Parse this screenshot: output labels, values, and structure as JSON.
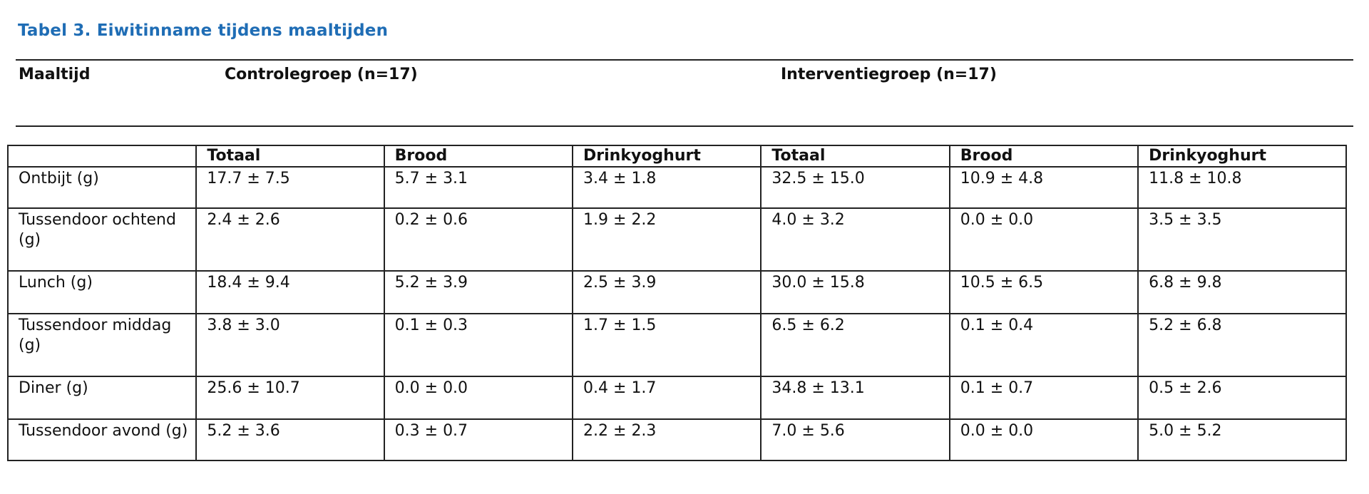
{
  "title": "Tabel 3.  Eiwitinname tijdens maaltijden",
  "header": {
    "meal_label": "Maaltijd",
    "control_group": "Controlegroep (n=17)",
    "intervention_group": "Interventiegroep (n=17)"
  },
  "columns": [
    "",
    "Totaal",
    "Brood",
    "Drinkyoghurt",
    "Totaal",
    "Brood",
    "Drinkyoghurt"
  ],
  "rows": [
    {
      "meal": "Ontbijt (g)",
      "values": [
        "17.7 ± 7.5",
        "5.7 ± 3.1",
        "3.4 ± 1.8",
        "32.5 ± 15.0",
        "10.9 ± 4.8",
        "11.8 ± 10.8"
      ]
    },
    {
      "meal": "Tussendoor ochtend (g)",
      "values": [
        "2.4 ± 2.6",
        "0.2 ± 0.6",
        "1.9 ± 2.2",
        "4.0 ± 3.2",
        "0.0 ± 0.0",
        "3.5 ± 3.5"
      ]
    },
    {
      "meal": "Lunch (g)",
      "values": [
        "18.4 ± 9.4",
        "5.2 ± 3.9",
        "2.5 ± 3.9",
        "30.0 ± 15.8",
        "10.5 ± 6.5",
        "6.8 ± 9.8"
      ]
    },
    {
      "meal": "Tussendoor middag (g)",
      "values": [
        "3.8 ± 3.0",
        "0.1 ± 0.3",
        "1.7 ± 1.5",
        "6.5 ± 6.2",
        "0.1 ± 0.4",
        "5.2 ± 6.8"
      ]
    },
    {
      "meal": "Diner (g)",
      "values": [
        "25.6 ± 10.7",
        "0.0 ± 0.0",
        "0.4 ± 1.7",
        "34.8 ± 13.1",
        "0.1 ± 0.7",
        "0.5 ± 2.6"
      ]
    },
    {
      "meal": "Tussendoor avond (g)",
      "values": [
        "5.2 ± 3.6",
        "0.3 ± 0.7",
        "2.2 ± 2.3",
        "7.0 ± 5.6",
        "0.0 ± 0.0",
        "5.0 ± 5.2"
      ]
    }
  ],
  "colors": {
    "title": "#1f6db5",
    "text": "#111111",
    "border": "#222222"
  }
}
